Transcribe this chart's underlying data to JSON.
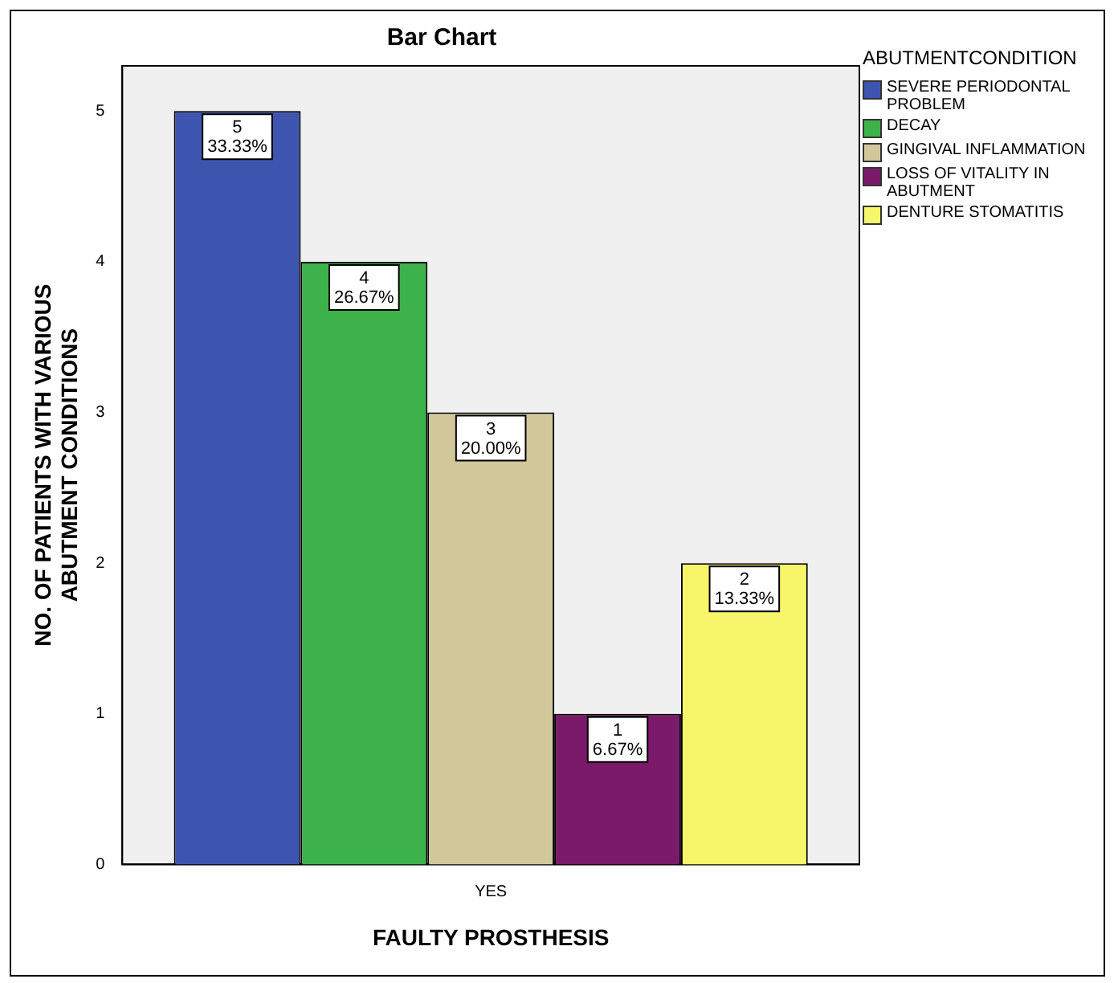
{
  "chart_data": {
    "type": "bar",
    "title": "Bar Chart",
    "xlabel": "FAULTY PROSTHESIS",
    "ylabel": "NO. OF PATIENTS WITH VARIOUS ABUTMENT CONDITIONS",
    "legend_title": "ABUTMENTCONDITION",
    "legend": "right",
    "grid": false,
    "categories": [
      "YES"
    ],
    "ylim": [
      0,
      5.3
    ],
    "yticks": [
      0,
      1,
      2,
      3,
      4,
      5
    ],
    "series": [
      {
        "name": "SEVERE PERIODONTAL PROBLEM",
        "color": "#3e55b0",
        "values": [
          5
        ],
        "value_labels": [
          "5\n33.33%"
        ]
      },
      {
        "name": "DECAY",
        "color": "#3db24a",
        "values": [
          4
        ],
        "value_labels": [
          "4\n26.67%"
        ]
      },
      {
        "name": "GINGIVAL INFLAMMATION",
        "color": "#d2c79a",
        "values": [
          3
        ],
        "value_labels": [
          "3\n20.00%"
        ]
      },
      {
        "name": "LOSS OF VITALITY IN ABUTMENT",
        "color": "#7b1a6a",
        "values": [
          1
        ],
        "value_labels": [
          "1\n6.67%"
        ]
      },
      {
        "name": "DENTURE STOMATITIS",
        "color": "#f7f56a",
        "values": [
          2
        ],
        "value_labels": [
          "2\n13.33%"
        ]
      }
    ]
  }
}
